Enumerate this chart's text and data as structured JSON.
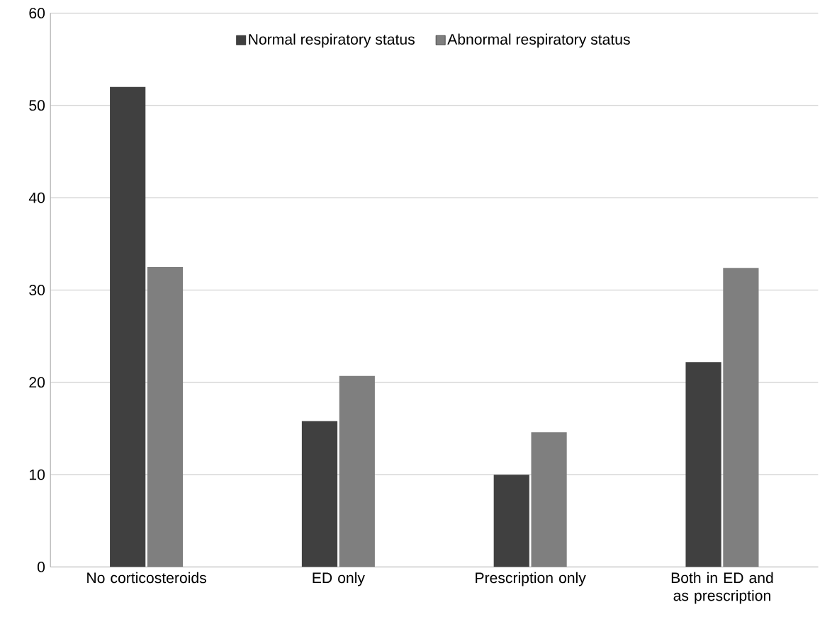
{
  "chart_data": {
    "type": "bar",
    "categories": [
      "No corticosteroids",
      "ED only",
      "Prescription only",
      "Both in ED and as prescription"
    ],
    "series": [
      {
        "name": "Normal respiratory status",
        "color": "#404040",
        "values": [
          52,
          15.8,
          10,
          22.2
        ]
      },
      {
        "name": "Abnormal respiratory status",
        "color": "#7f7f7f",
        "values": [
          32.5,
          20.7,
          14.6,
          32.4
        ]
      }
    ],
    "ylim": [
      0,
      60
    ],
    "yticks": [
      0,
      10,
      20,
      30,
      40,
      50,
      60
    ],
    "grid": "y",
    "legend": "top"
  }
}
